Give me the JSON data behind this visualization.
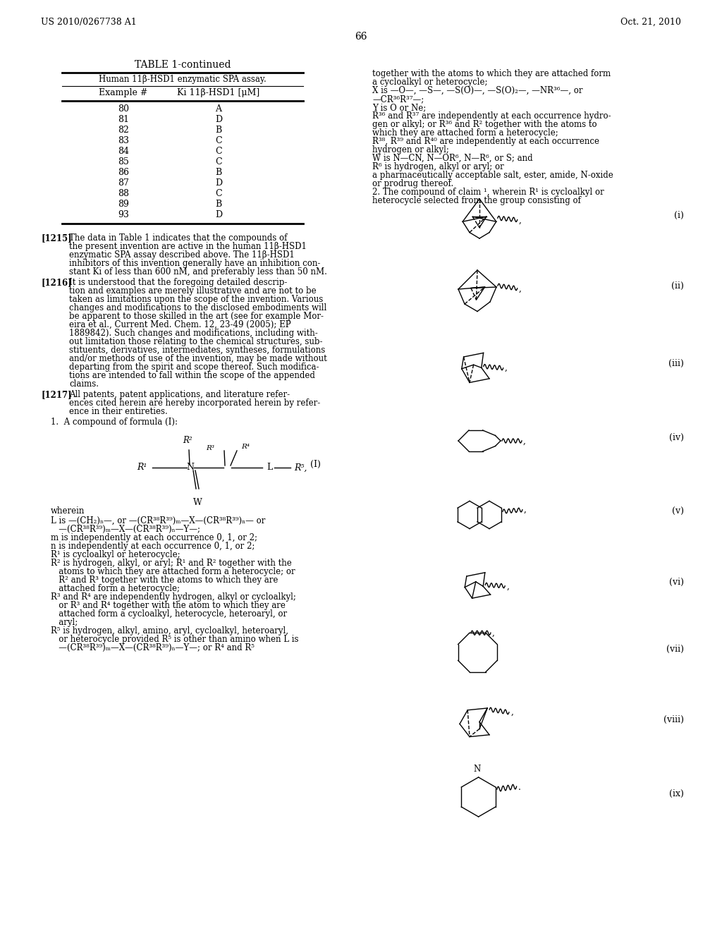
{
  "page_number": "66",
  "header_left": "US 2010/0267738 A1",
  "header_right": "Oct. 21, 2010",
  "background_color": "#ffffff",
  "table_title": "TABLE 1-continued",
  "table_subtitle": "Human 11β-HSD1 enzymatic SPA assay.",
  "col1_header": "Example #",
  "col2_header": "Ki 11β-HSD1 [μM]",
  "table_rows": [
    [
      "80",
      "A"
    ],
    [
      "81",
      "D"
    ],
    [
      "82",
      "B"
    ],
    [
      "83",
      "C"
    ],
    [
      "84",
      "C"
    ],
    [
      "85",
      "C"
    ],
    [
      "86",
      "B"
    ],
    [
      "87",
      "D"
    ],
    [
      "88",
      "C"
    ],
    [
      "89",
      "B"
    ],
    [
      "93",
      "D"
    ]
  ],
  "structure_labels": [
    "(i)",
    "(ii)",
    "(iii)",
    "(iv)",
    "(v)",
    "(vi)",
    "(vii)",
    "(viii)",
    "(ix)"
  ]
}
